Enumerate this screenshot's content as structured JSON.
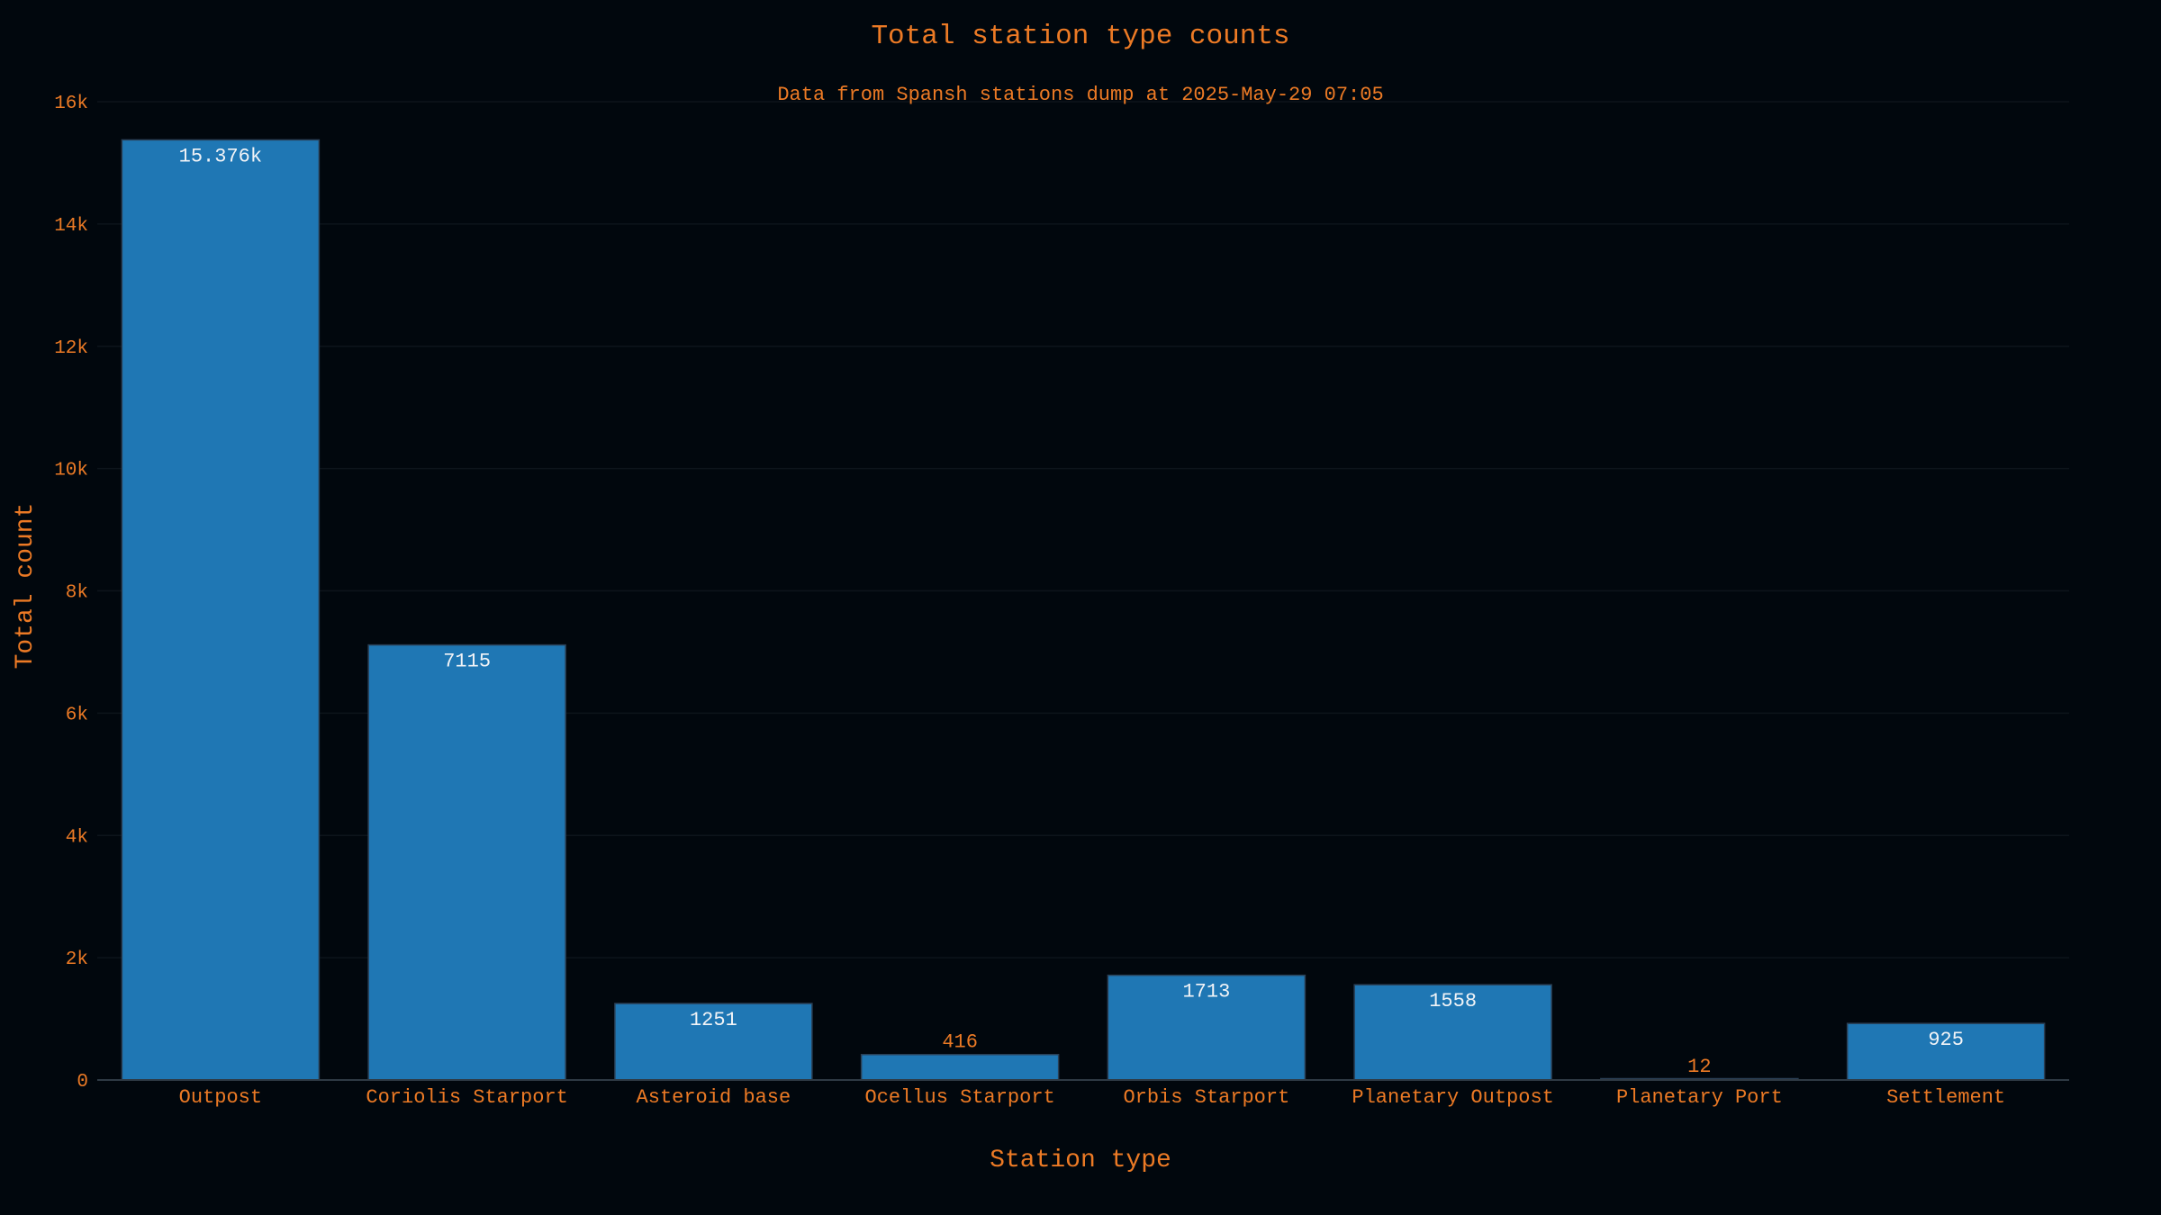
{
  "chart_data": {
    "type": "bar",
    "title": "Total station type counts",
    "subtitle": "Data from Spansh stations dump at 2025-May-29 07:05",
    "xlabel": "Station type",
    "ylabel": "Total count",
    "categories": [
      "Outpost",
      "Coriolis Starport",
      "Asteroid base",
      "Ocellus Starport",
      "Orbis Starport",
      "Planetary Outpost",
      "Planetary Port",
      "Settlement"
    ],
    "values": [
      15376,
      7115,
      1251,
      416,
      1713,
      1558,
      12,
      925
    ],
    "data_labels": [
      "15.376k",
      "7115",
      "1251",
      "416",
      "1713",
      "1558",
      "12",
      "925"
    ],
    "ylim": [
      0,
      16000
    ],
    "yticks": [
      0,
      2000,
      4000,
      6000,
      8000,
      10000,
      12000,
      14000,
      16000
    ],
    "ytick_labels": [
      "0",
      "2k",
      "4k",
      "6k",
      "8k",
      "10k",
      "12k",
      "14k",
      "16k"
    ],
    "grid": true,
    "legend": "none"
  },
  "colors": {
    "background": "#01070d",
    "bar_fill": "#1f77b4",
    "bar_stroke": "#2a3f55",
    "text_accent": "#ec7a25",
    "label_inside": "#f2f4f7",
    "grid": "#0d141b",
    "axis_line": "#2f3a44"
  }
}
